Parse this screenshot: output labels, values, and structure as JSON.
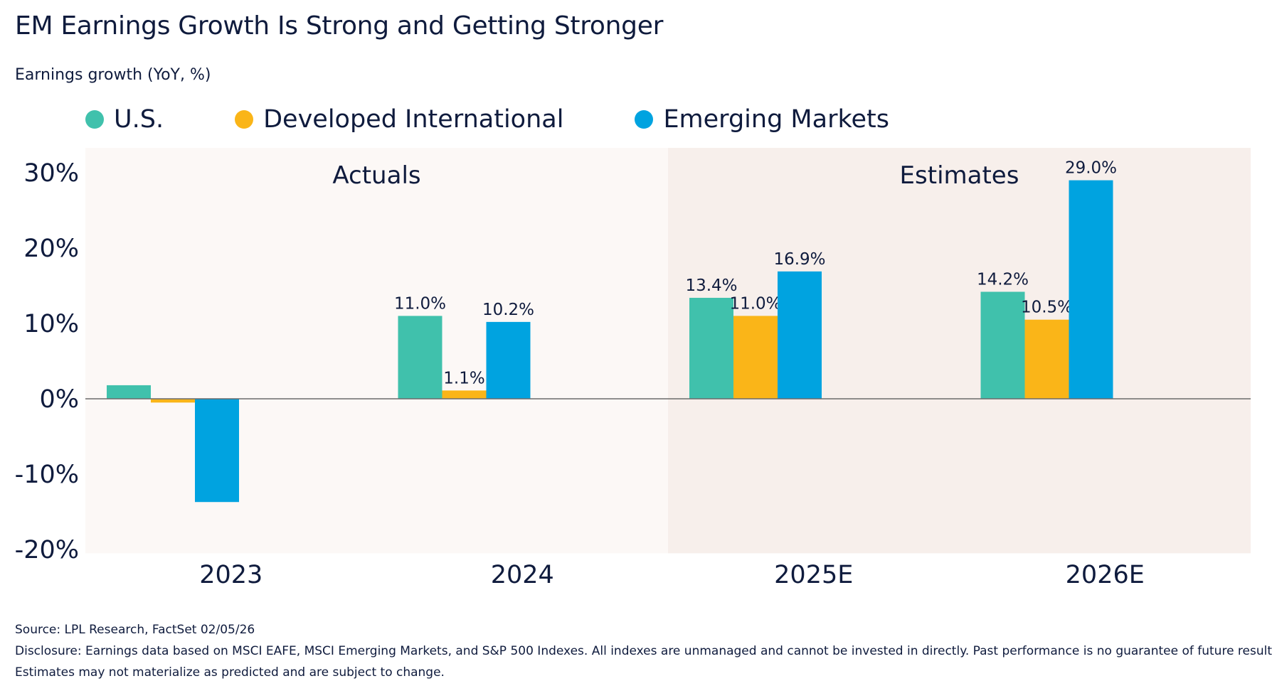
{
  "title": "EM Earnings Growth Is Strong and Getting Stronger",
  "subtitle": "Earnings growth (YoY, %)",
  "footer": {
    "source": "Source: LPL Research, FactSet 02/05/26",
    "disclosure_line1": "Disclosure: Earnings data based on MSCI EAFE, MSCI Emerging Markets, and S&P 500 Indexes. All indexes are unmanaged and cannot be invested in directly. Past performance is no guarantee of future results.",
    "disclosure_line2": "Estimates may not materialize as predicted and are subject to change."
  },
  "chart_data": {
    "type": "bar",
    "categories": [
      "2023",
      "2024",
      "2025E",
      "2026E"
    ],
    "series": [
      {
        "name": "U.S.",
        "color": "#40c1ac",
        "values": [
          1.8,
          11.0,
          13.4,
          14.2
        ],
        "labels": [
          "",
          "11.0%",
          "13.4%",
          "14.2%"
        ]
      },
      {
        "name": "Developed International",
        "color": "#fab518",
        "values": [
          -0.5,
          1.1,
          11.0,
          10.5
        ],
        "labels": [
          "",
          "1.1%",
          "11.0%",
          "10.5%"
        ]
      },
      {
        "name": "Emerging Markets",
        "color": "#00a3e0",
        "values": [
          -13.7,
          10.2,
          16.9,
          29.0
        ],
        "labels": [
          "",
          "10.2%",
          "16.9%",
          "29.0%"
        ]
      }
    ],
    "regions": [
      {
        "label": "Actuals",
        "categories": [
          "2023",
          "2024"
        ],
        "color": "#fcf8f6"
      },
      {
        "label": "Estimates",
        "categories": [
          "2025E",
          "2026E"
        ],
        "color": "#f7efeb"
      }
    ],
    "ylim": [
      -20,
      32
    ],
    "yticks": [
      30,
      20,
      10,
      0,
      -10,
      -20
    ],
    "ytick_labels": [
      "30%",
      "20%",
      "10%",
      "0%",
      "-10%",
      "-20%"
    ],
    "grid": false,
    "legend_position": "top-left"
  }
}
